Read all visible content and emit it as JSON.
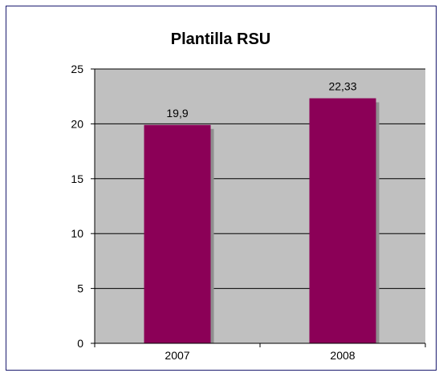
{
  "chart_data": {
    "type": "bar",
    "title": "Plantilla RSU",
    "categories": [
      "2007",
      "2008"
    ],
    "values": [
      19.9,
      22.33
    ],
    "data_labels": [
      "19,9",
      "22,33"
    ],
    "y_ticks": [
      "0",
      "5",
      "10",
      "15",
      "20",
      "25"
    ],
    "ylim": [
      0,
      25
    ],
    "grid": true,
    "legend": "none",
    "colors": {
      "bar": "#8b0057",
      "bar_shadow": "#8f8f8f",
      "plot_background": "#c0c0c0",
      "gridline": "#000000"
    }
  }
}
